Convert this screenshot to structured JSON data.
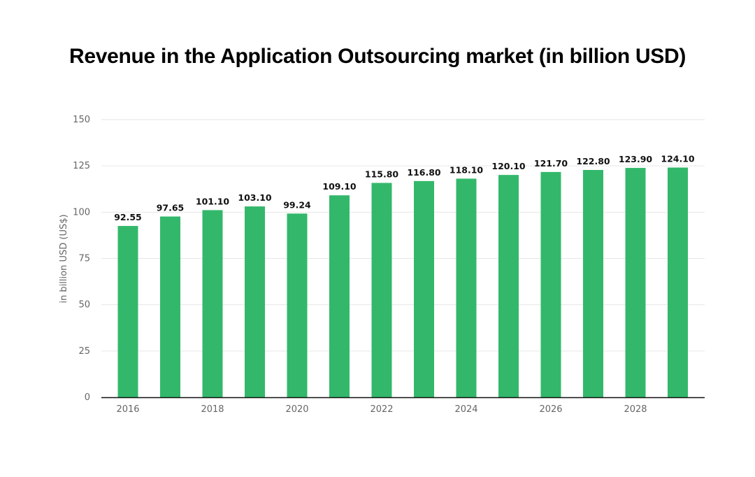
{
  "chart_data": {
    "type": "bar",
    "title": "Revenue in the Application Outsourcing market (in billion USD)",
    "xlabel": "",
    "ylabel": "in billion USD (US$)",
    "categories": [
      "2016",
      "2017",
      "2018",
      "2019",
      "2020",
      "2021",
      "2022",
      "2023",
      "2024",
      "2025",
      "2026",
      "2027",
      "2028",
      "2029"
    ],
    "x_tick_labels": [
      "2016",
      "",
      "2018",
      "",
      "2020",
      "",
      "2022",
      "",
      "2024",
      "",
      "2026",
      "",
      "2028",
      ""
    ],
    "values": [
      92.55,
      97.65,
      101.1,
      103.1,
      99.24,
      109.1,
      115.8,
      116.8,
      118.1,
      120.1,
      121.7,
      122.8,
      123.9,
      124.1
    ],
    "data_labels": [
      "92.55",
      "97.65",
      "101.10",
      "103.10",
      "99.24",
      "109.10",
      "115.80",
      "116.80",
      "118.10",
      "120.10",
      "121.70",
      "122.80",
      "123.90",
      "124.10"
    ],
    "ylim": [
      0,
      150
    ],
    "y_ticks": [
      "0",
      "25",
      "50",
      "75",
      "100",
      "125",
      "150"
    ],
    "grid": true,
    "bar_color": "#33b86b"
  }
}
